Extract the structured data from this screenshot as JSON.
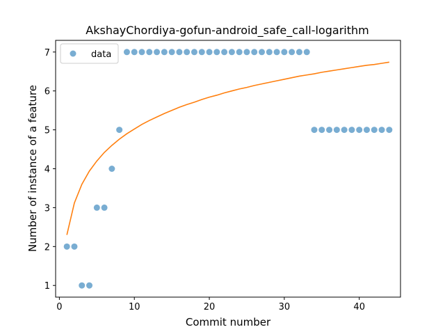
{
  "chart_data": {
    "type": "scatter",
    "title": "AkshayChordiya-gofun-android_safe_call-logarithm",
    "xlabel": "Commit number",
    "ylabel": "Number of instance of a feature",
    "xlim": [
      -0.5,
      45.5
    ],
    "ylim": [
      0.7,
      7.3
    ],
    "xticks": [
      0,
      10,
      20,
      30,
      40
    ],
    "yticks": [
      1,
      2,
      3,
      4,
      5,
      6,
      7
    ],
    "grid": false,
    "legend": {
      "placement": "top-left",
      "entries": [
        "data"
      ]
    },
    "colors": {
      "data": "#1f77b4",
      "fit": "#ff7f0e"
    },
    "series": [
      {
        "name": "data",
        "kind": "scatter",
        "x": [
          1,
          2,
          3,
          4,
          5,
          6,
          7,
          8,
          9,
          10,
          11,
          12,
          13,
          14,
          15,
          16,
          17,
          18,
          19,
          20,
          21,
          22,
          23,
          24,
          25,
          26,
          27,
          28,
          29,
          30,
          31,
          32,
          33,
          34,
          35,
          36,
          37,
          38,
          39,
          40,
          41,
          42,
          43,
          44
        ],
        "y": [
          2,
          2,
          1,
          1,
          3,
          3,
          4,
          5,
          7,
          7,
          7,
          7,
          7,
          7,
          7,
          7,
          7,
          7,
          7,
          7,
          7,
          7,
          7,
          7,
          7,
          7,
          7,
          7,
          7,
          7,
          7,
          7,
          7,
          5,
          5,
          5,
          5,
          5,
          5,
          5,
          5,
          5,
          5,
          5
        ]
      },
      {
        "kind": "line",
        "x": [
          1,
          2,
          3,
          4,
          5,
          6,
          7,
          8,
          9,
          10,
          11,
          12,
          13,
          14,
          15,
          16,
          17,
          18,
          19,
          20,
          21,
          22,
          23,
          24,
          25,
          26,
          27,
          28,
          29,
          30,
          31,
          32,
          33,
          34,
          35,
          36,
          37,
          38,
          39,
          40,
          41,
          42,
          43,
          44
        ],
        "y": [
          2.3,
          3.12,
          3.6,
          3.94,
          4.2,
          4.42,
          4.6,
          4.76,
          4.9,
          5.02,
          5.14,
          5.24,
          5.33,
          5.42,
          5.5,
          5.58,
          5.65,
          5.71,
          5.78,
          5.84,
          5.89,
          5.95,
          6.0,
          6.05,
          6.09,
          6.14,
          6.18,
          6.22,
          6.26,
          6.3,
          6.34,
          6.38,
          6.41,
          6.44,
          6.48,
          6.51,
          6.54,
          6.57,
          6.6,
          6.63,
          6.66,
          6.68,
          6.71,
          6.74
        ]
      }
    ]
  }
}
